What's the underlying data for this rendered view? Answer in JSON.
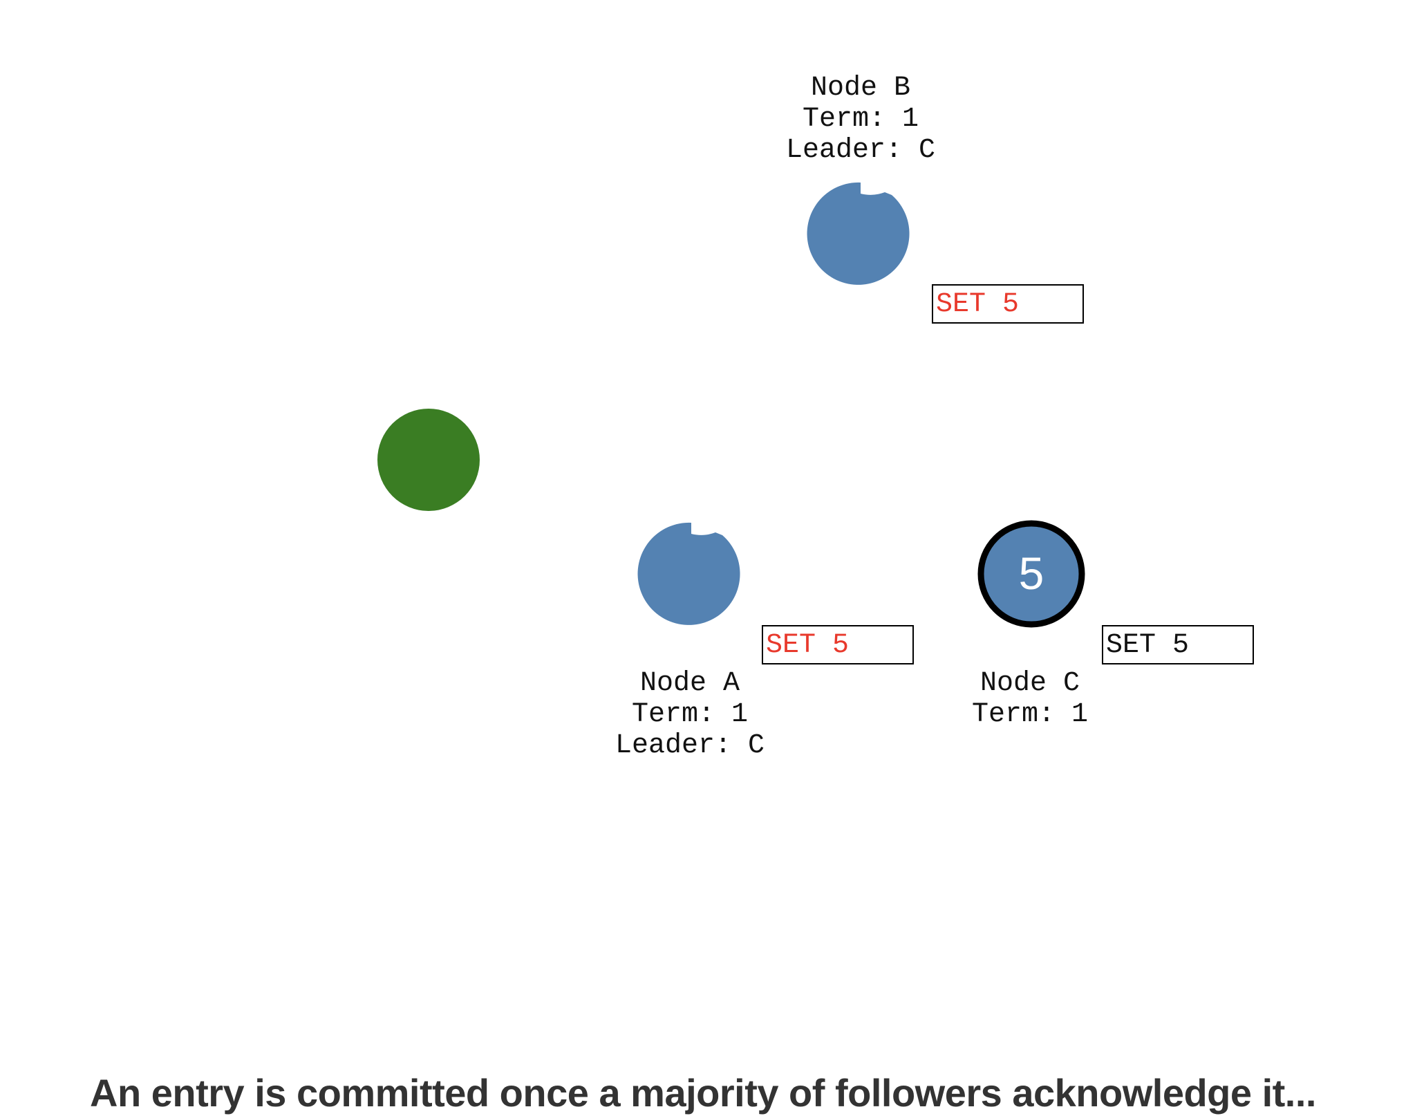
{
  "nodes": {
    "a": {
      "name": "Node A",
      "term": "Term: 1",
      "leader": "Leader: C",
      "log_entry": "SET 5",
      "log_committed": false,
      "color": "#5482b2"
    },
    "b": {
      "name": "Node B",
      "term": "Term: 1",
      "leader": "Leader: C",
      "log_entry": "SET 5",
      "log_committed": false,
      "color": "#5482b2"
    },
    "c": {
      "name": "Node C",
      "term": "Term: 1",
      "value": "5",
      "log_entry": "SET 5",
      "log_committed": true,
      "color": "#5482b2",
      "role": "leader"
    }
  },
  "client": {
    "color": "#3a7d23"
  },
  "colors": {
    "uncommitted_text": "#e8392c",
    "committed_text": "#111111",
    "leader_ring": "#000000"
  },
  "caption": "An entry is committed once a majority of followers acknowledge it..."
}
